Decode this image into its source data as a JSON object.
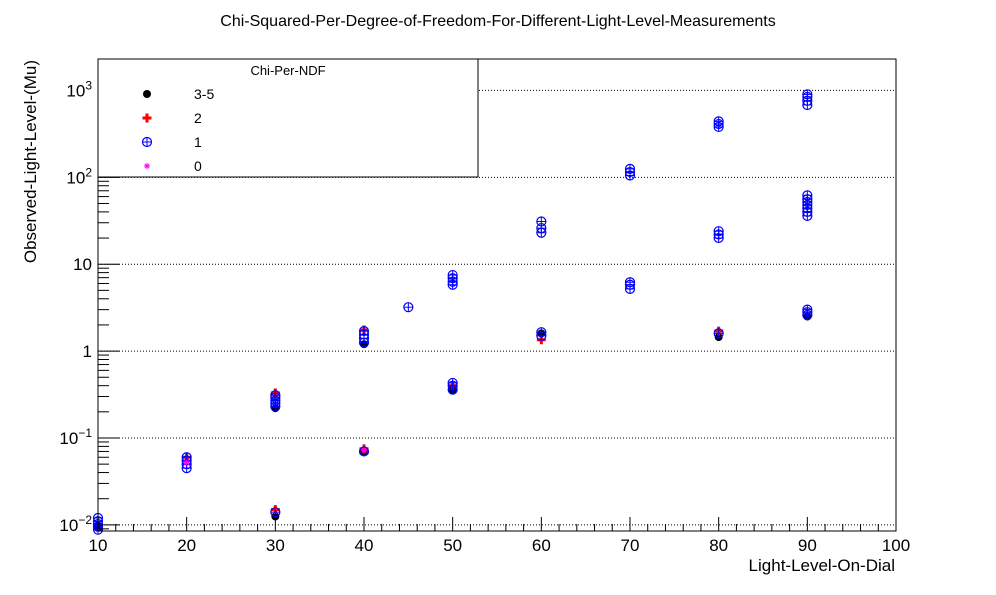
{
  "chart_data": {
    "type": "scatter",
    "title": "Chi-Squared-Per-Degree-of-Freedom-For-Different-Light-Level-Measurements",
    "xlabel": "Light-Level-On-Dial",
    "ylabel": "Observed-Light-Level-(Mu)",
    "xlim": [
      10,
      100
    ],
    "ylim": [
      0.0085,
      2300
    ],
    "yscale": "log",
    "grid": "horizontal-dotted",
    "x_ticks": [
      10,
      20,
      30,
      40,
      50,
      60,
      70,
      80,
      90,
      100
    ],
    "x_tick_labels": [
      "10",
      "20",
      "30",
      "40",
      "50",
      "60",
      "70",
      "80",
      "90",
      "100"
    ],
    "y_ticks": [
      {
        "value": 0.01,
        "base": "10",
        "exp": "−2"
      },
      {
        "value": 0.1,
        "base": "10",
        "exp": "−1"
      },
      {
        "value": 1,
        "base": "1",
        "exp": ""
      },
      {
        "value": 10,
        "base": "10",
        "exp": ""
      },
      {
        "value": 100,
        "base": "10",
        "exp": "2"
      },
      {
        "value": 1000,
        "base": "10",
        "exp": "3"
      }
    ],
    "legend": {
      "title": "Chi-Per-NDF",
      "placement": "top-left",
      "entries": [
        {
          "label": "3-5",
          "marker": "filled-circle",
          "color": "#000000"
        },
        {
          "label": "2",
          "marker": "plus",
          "color": "#ff0000"
        },
        {
          "label": "1",
          "marker": "circle-plus",
          "color": "#0000ff"
        },
        {
          "label": "0",
          "marker": "star",
          "color": "#ff00ff"
        }
      ]
    },
    "series": [
      {
        "name": "3-5",
        "color": "#000000",
        "marker": "filled-circle",
        "points": [
          [
            10,
            0.0095
          ],
          [
            30,
            0.0125
          ],
          [
            30,
            0.22
          ],
          [
            40,
            1.2
          ],
          [
            40,
            0.07
          ],
          [
            50,
            0.36
          ],
          [
            60,
            1.6
          ],
          [
            80,
            1.45
          ],
          [
            90,
            2.5
          ]
        ]
      },
      {
        "name": "2",
        "color": "#ff0000",
        "marker": "plus",
        "points": [
          [
            20,
            0.06
          ],
          [
            30,
            0.015
          ],
          [
            30,
            0.33
          ],
          [
            40,
            1.75
          ],
          [
            40,
            0.075
          ],
          [
            50,
            0.4
          ],
          [
            60,
            1.35
          ],
          [
            80,
            1.7
          ]
        ]
      },
      {
        "name": "1",
        "color": "#0000ff",
        "marker": "circle-plus",
        "points": [
          [
            10,
            0.0088
          ],
          [
            10,
            0.0095
          ],
          [
            10,
            0.0102
          ],
          [
            10,
            0.011
          ],
          [
            10,
            0.012
          ],
          [
            20,
            0.045
          ],
          [
            20,
            0.05
          ],
          [
            20,
            0.055
          ],
          [
            20,
            0.06
          ],
          [
            30,
            0.014
          ],
          [
            30,
            0.23
          ],
          [
            30,
            0.25
          ],
          [
            30,
            0.27
          ],
          [
            30,
            0.29
          ],
          [
            30,
            0.31
          ],
          [
            40,
            0.07
          ],
          [
            40,
            1.25
          ],
          [
            40,
            1.4
          ],
          [
            40,
            1.55
          ],
          [
            40,
            1.7
          ],
          [
            45,
            3.2
          ],
          [
            50,
            0.36
          ],
          [
            50,
            0.4
          ],
          [
            50,
            0.43
          ],
          [
            50,
            5.8
          ],
          [
            50,
            6.3
          ],
          [
            50,
            6.9
          ],
          [
            50,
            7.5
          ],
          [
            60,
            1.5
          ],
          [
            60,
            1.65
          ],
          [
            60,
            23
          ],
          [
            60,
            26
          ],
          [
            60,
            31
          ],
          [
            70,
            5.2
          ],
          [
            70,
            5.8
          ],
          [
            70,
            6.2
          ],
          [
            70,
            105
          ],
          [
            70,
            115
          ],
          [
            70,
            125
          ],
          [
            80,
            1.6
          ],
          [
            80,
            20
          ],
          [
            80,
            22
          ],
          [
            80,
            24
          ],
          [
            80,
            380
          ],
          [
            80,
            410
          ],
          [
            80,
            440
          ],
          [
            90,
            2.6
          ],
          [
            90,
            2.8
          ],
          [
            90,
            3.0
          ],
          [
            90,
            36
          ],
          [
            90,
            40
          ],
          [
            90,
            44
          ],
          [
            90,
            48
          ],
          [
            90,
            52
          ],
          [
            90,
            56
          ],
          [
            90,
            62
          ],
          [
            90,
            680
          ],
          [
            90,
            760
          ],
          [
            90,
            840
          ],
          [
            90,
            900
          ]
        ]
      },
      {
        "name": "0",
        "color": "#ff00ff",
        "marker": "star",
        "points": [
          [
            20,
            0.052
          ],
          [
            40,
            0.072
          ]
        ]
      }
    ]
  }
}
